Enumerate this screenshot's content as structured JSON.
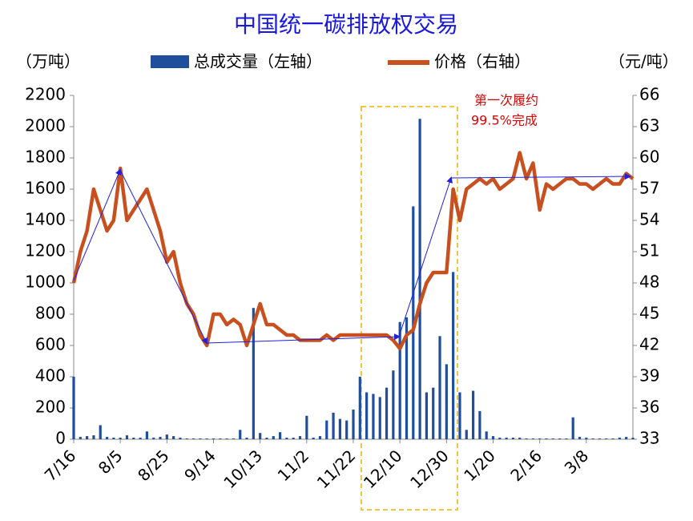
{
  "chart_data": {
    "type": "bar_line",
    "title": "中国统一碳排放权交易",
    "y_label": "（万吨）",
    "y2_label": "（元/吨）",
    "annotations": [
      "第一次履约",
      "99.5%完成"
    ],
    "categories": [
      "7/16",
      null,
      null,
      null,
      null,
      null,
      null,
      "8/5",
      null,
      null,
      null,
      null,
      null,
      null,
      "8/25",
      null,
      null,
      null,
      null,
      null,
      null,
      "9/14",
      null,
      null,
      null,
      null,
      null,
      null,
      "10/13",
      null,
      null,
      null,
      null,
      null,
      null,
      "11/2",
      null,
      null,
      null,
      null,
      null,
      null,
      "11/22",
      null,
      null,
      null,
      null,
      null,
      null,
      "12/10",
      null,
      null,
      null,
      null,
      null,
      null,
      "12/30",
      null,
      null,
      null,
      null,
      null,
      null,
      "1/20",
      null,
      null,
      null,
      null,
      null,
      null,
      "2/16",
      null,
      null,
      null,
      null,
      null,
      null,
      "3/8",
      null,
      null,
      null,
      null,
      null,
      null,
      null
    ],
    "series": [
      {
        "name": "总成交量（左轴）",
        "kind": "bar",
        "color": "#1f4e9c",
        "values": [
          400,
          15,
          20,
          25,
          90,
          15,
          10,
          10,
          25,
          10,
          10,
          50,
          10,
          15,
          30,
          20,
          10,
          5,
          5,
          5,
          5,
          5,
          5,
          5,
          5,
          60,
          10,
          840,
          40,
          10,
          20,
          45,
          10,
          10,
          20,
          150,
          10,
          20,
          120,
          170,
          130,
          120,
          190,
          400,
          300,
          290,
          270,
          330,
          440,
          750,
          780,
          1490,
          2050,
          300,
          330,
          660,
          480,
          1070,
          300,
          60,
          310,
          180,
          50,
          20,
          10,
          10,
          10,
          10,
          5,
          5,
          5,
          5,
          5,
          5,
          5,
          140,
          15,
          10,
          5,
          5,
          5,
          5,
          10,
          15,
          10
        ]
      },
      {
        "name": "价格（右轴）",
        "kind": "line",
        "axis": "y2",
        "color": "#c8501e",
        "values": [
          48,
          51,
          53,
          57,
          55,
          53,
          54,
          59,
          54,
          55,
          56,
          57,
          55,
          53,
          50,
          51,
          48,
          46,
          45,
          43,
          42,
          45,
          45,
          44,
          44.5,
          44,
          42,
          44,
          46,
          44,
          44,
          43.5,
          43,
          43,
          42.5,
          42.5,
          42.5,
          42.5,
          43,
          42.5,
          43,
          43,
          43,
          43,
          43,
          43,
          43,
          43,
          42.5,
          41.7,
          43,
          43.5,
          46,
          48,
          49,
          49,
          49,
          57,
          54,
          57,
          57.5,
          58,
          57.5,
          58,
          57,
          57.5,
          58,
          60.5,
          58,
          59.5,
          55,
          57.5,
          57,
          57.5,
          58,
          58,
          57.5,
          57.5,
          57,
          57.5,
          58,
          57.5,
          57.5,
          58.5,
          58
        ]
      }
    ],
    "ylim": [
      0,
      2200
    ],
    "yticks": [
      0,
      200,
      400,
      600,
      800,
      1000,
      1200,
      1400,
      1600,
      1800,
      2000,
      2200
    ],
    "y2lim": [
      33,
      66
    ],
    "y2ticks": [
      33,
      36,
      39,
      42,
      45,
      48,
      51,
      54,
      57,
      60,
      63,
      66
    ]
  }
}
